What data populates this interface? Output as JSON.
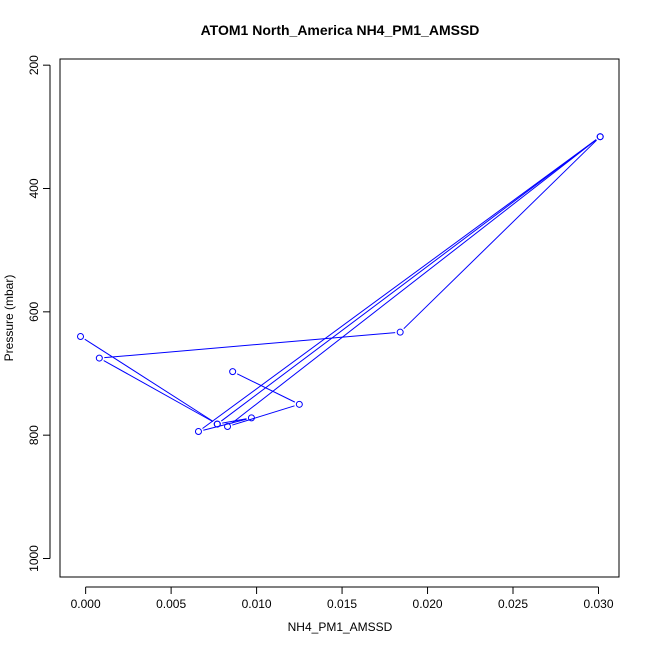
{
  "chart_data": {
    "type": "line",
    "title": "ATOM1 North_America NH4_PM1_AMSSD",
    "xlabel": "NH4_PM1_AMSSD",
    "ylabel": "Pressure (mbar)",
    "xlim": [
      -0.0015,
      0.0312
    ],
    "ylim": [
      1030,
      190
    ],
    "y_reversed": true,
    "x_ticks": [
      0.0,
      0.005,
      0.01,
      0.015,
      0.02,
      0.025,
      0.03
    ],
    "x_tick_labels": [
      "0.000",
      "0.005",
      "0.010",
      "0.015",
      "0.020",
      "0.025",
      "0.030"
    ],
    "y_ticks": [
      200,
      400,
      600,
      800,
      1000
    ],
    "y_tick_labels": [
      "200",
      "400",
      "600",
      "800",
      "1000"
    ],
    "grid": false,
    "legend": "none",
    "color": "#0000ff",
    "marker": "open-circle",
    "series": [
      {
        "x": [
          0.0086,
          0.0125,
          0.0083,
          0.0301,
          0.0066,
          0.0097,
          0.0077,
          0.0008,
          0.0184,
          0.0301,
          0.0077,
          -0.0003
        ],
        "y": [
          697,
          750,
          786,
          316,
          794,
          772,
          782,
          675,
          633,
          316,
          782,
          640
        ]
      }
    ]
  }
}
